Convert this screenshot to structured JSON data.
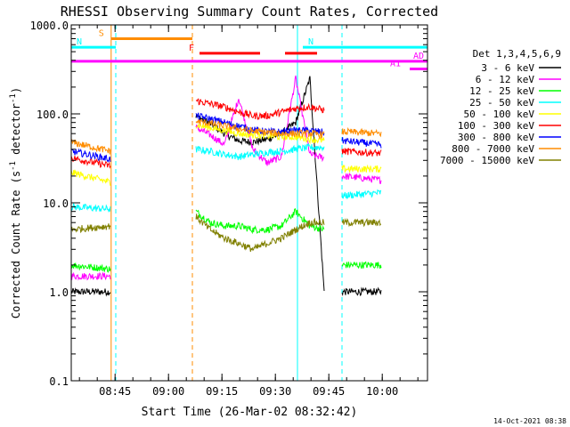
{
  "chart_data": {
    "type": "line",
    "title": "RHESSI Observing Summary Count Rates, Corrected",
    "xlabel": "Start Time (26-Mar-02 08:32:42)",
    "ylabel_main": "Corrected Count Rate (s",
    "ylabel_sup1": "-1",
    "ylabel_mid": " detector",
    "ylabel_sup2": "-1",
    "ylabel_end": ")",
    "y_scale": "log",
    "ylim": [
      0.1,
      1000
    ],
    "xlim_minutes": [
      0,
      100
    ],
    "x_ticks": [
      {
        "label": "08:45",
        "min": 12.3
      },
      {
        "label": "09:00",
        "min": 27.3
      },
      {
        "label": "09:15",
        "min": 42.3
      },
      {
        "label": "09:30",
        "min": 57.3
      },
      {
        "label": "09:45",
        "min": 72.3
      },
      {
        "label": "10:00",
        "min": 87.3
      }
    ],
    "y_ticks": [
      {
        "label": "1000.0",
        "value": 1000
      },
      {
        "label": "100.0",
        "value": 100
      },
      {
        "label": "10.0",
        "value": 10
      },
      {
        "label": "1.0",
        "value": 1
      },
      {
        "label": "0.1",
        "value": 0.1
      }
    ],
    "legend_title": "Det 1,3,4,5,6,9",
    "series": [
      {
        "name": "3 - 6 keV",
        "color": "#000000",
        "seg1": [
          1.0,
          1.0
        ],
        "seg2": [
          95,
          78,
          60,
          50,
          48,
          52,
          60,
          80,
          250,
          1.0
        ],
        "seg3": [
          1.0,
          1.0
        ]
      },
      {
        "name": "6 - 12 keV",
        "color": "#ff00ff",
        "seg1": [
          1.5,
          1.5
        ],
        "seg2": [
          70,
          58,
          45,
          150,
          40,
          28,
          33,
          250,
          35,
          32
        ],
        "seg3": [
          20,
          18
        ]
      },
      {
        "name": "12 - 25 keV",
        "color": "#00ff00",
        "seg1": [
          2.0,
          1.8
        ],
        "seg2": [
          8.0,
          6.0,
          5.5,
          5.5,
          5.0,
          5.0,
          5.5,
          8.0,
          5.5,
          5.0
        ],
        "seg3": [
          2.0,
          2.0
        ]
      },
      {
        "name": "25 - 50 keV",
        "color": "#00ffff",
        "seg1": [
          9.0,
          8.5
        ],
        "seg2": [
          40,
          38,
          35,
          33,
          35,
          37,
          38,
          40,
          42,
          42
        ],
        "seg3": [
          12,
          13
        ]
      },
      {
        "name": "50 - 100 keV",
        "color": "#ffff00",
        "seg1": [
          22,
          17
        ],
        "seg2": [
          75,
          70,
          65,
          60,
          58,
          57,
          55,
          55,
          52,
          50
        ],
        "seg3": [
          24,
          24
        ]
      },
      {
        "name": "100 - 300 keV",
        "color": "#ff0000",
        "seg1": [
          32,
          26
        ],
        "seg2": [
          140,
          130,
          120,
          105,
          95,
          95,
          105,
          115,
          120,
          110
        ],
        "seg3": [
          38,
          36
        ]
      },
      {
        "name": "300 - 800 keV",
        "color": "#0000ff",
        "seg1": [
          38,
          31
        ],
        "seg2": [
          95,
          88,
          80,
          73,
          66,
          63,
          63,
          65,
          65,
          62
        ],
        "seg3": [
          50,
          45
        ]
      },
      {
        "name": "800 - 7000 keV",
        "color": "#ff8c00",
        "seg1": [
          48,
          38
        ],
        "seg2": [
          82,
          78,
          73,
          68,
          64,
          62,
          60,
          60,
          60,
          58
        ],
        "seg3": [
          63,
          60
        ]
      },
      {
        "name": "7000 - 15000 keV",
        "color": "#808000",
        "seg1": [
          5.0,
          5.5
        ],
        "seg2": [
          7.0,
          5.0,
          4.0,
          3.5,
          3.0,
          3.5,
          4.0,
          5.0,
          6.0,
          6.0
        ],
        "seg3": [
          6.0,
          6.0
        ]
      }
    ],
    "segment_ranges_min": [
      [
        0,
        11
      ],
      [
        35,
        71
      ],
      [
        76,
        87
      ]
    ],
    "vlines": [
      {
        "min": 0,
        "color": "#00ffff",
        "style": "solid"
      },
      {
        "min": 11.2,
        "color": "#ff8c00",
        "style": "solid"
      },
      {
        "min": 12.5,
        "color": "#00ffff",
        "style": "dashed"
      },
      {
        "min": 34.0,
        "color": "#ff8c00",
        "style": "dashed"
      },
      {
        "min": 63.5,
        "color": "#00ffff",
        "style": "solid"
      },
      {
        "min": 76.0,
        "color": "#00ffff",
        "style": "dashed"
      }
    ],
    "status_bars": [
      {
        "label": "S",
        "color": "#ff8c00",
        "from": 11.2,
        "to": 34.0,
        "value": 700
      },
      {
        "label": "N",
        "color": "#00ffff",
        "from": 0,
        "to": 12.5,
        "value": 560
      },
      {
        "label": "N",
        "color": "#00ffff",
        "from": 65.0,
        "to": 100,
        "value": 560
      },
      {
        "label": "F",
        "color": "#ff0000",
        "from": 36.0,
        "to": 53.0,
        "value": 480
      },
      {
        "label": "",
        "color": "#ff0000",
        "from": 60.0,
        "to": 69.0,
        "value": 480
      },
      {
        "label": "AD",
        "color": "#ff00ff",
        "from": 0,
        "to": 100,
        "value": 390
      },
      {
        "label": "A1",
        "color": "#ff00ff",
        "from": 95,
        "to": 100,
        "value": 320
      }
    ],
    "timestamp": "14-Oct-2021 08:38"
  }
}
